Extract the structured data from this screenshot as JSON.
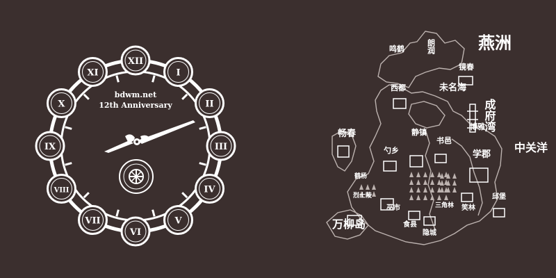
{
  "colors": {
    "background": "#3b2f2e",
    "foreground": "#ffffff",
    "map_stroke": "#bdb3b0"
  },
  "clock": {
    "title_line1": "bdwm.net",
    "title_line2": "12th Anniversary",
    "numerals": [
      "XII",
      "I",
      "II",
      "III",
      "IV",
      "V",
      "VI",
      "VII",
      "VIII",
      "IX",
      "X",
      "XI"
    ]
  },
  "map": {
    "region_labels": {
      "yanzhou": "燕洲",
      "chengfu_bay": "成府湾",
      "zhongguan_ocean": "中关洋",
      "wanliu_island": "万柳岛",
      "changchun": "畅春"
    },
    "place_labels": {
      "langrun": "朗润",
      "minghe": "鸣鹤",
      "jingchun": "镜春",
      "xidu": "西都",
      "weiming_lake": "未名海",
      "bo_ya": "博雅",
      "jingzhen": "静镇",
      "shuyi": "书邑",
      "shaoxiang": "勺乡",
      "xuejun": "学郡",
      "changchun_small": "畅春",
      "changxin": "鹤杨",
      "lieshi": "烈士陵",
      "yamen": "巫市",
      "sanjiaolin": "三角林",
      "shixian": "食县",
      "yinhu": "隐城",
      "xiaolin": "笑林",
      "qiaobao": "邱堡"
    }
  }
}
